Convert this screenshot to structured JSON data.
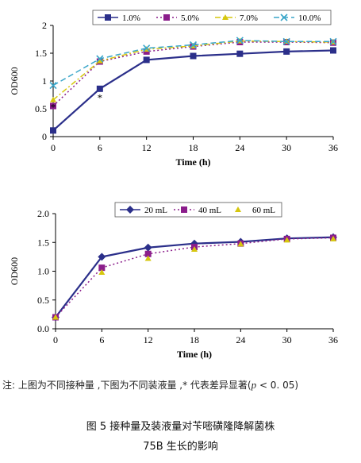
{
  "chart_data": [
    {
      "type": "line",
      "x": [
        0,
        6,
        12,
        18,
        24,
        30,
        36
      ],
      "xlabel": "Time (h)",
      "ylabel": "OD600",
      "ylim": [
        0,
        2
      ],
      "yticks": [
        "0",
        "0.5",
        "1",
        "1.5",
        "2"
      ],
      "xticks": [
        "0",
        "6",
        "12",
        "18",
        "24",
        "30",
        "36"
      ],
      "legend_position": "top",
      "series": [
        {
          "name": "1.0%",
          "color": "#2b2f8a",
          "marker": "square",
          "dash": "solid",
          "values": [
            0.11,
            0.86,
            1.38,
            1.45,
            1.49,
            1.53,
            1.55
          ]
        },
        {
          "name": "5.0%",
          "color": "#8b1d8b",
          "marker": "square",
          "dash": "dotted",
          "values": [
            0.55,
            1.35,
            1.53,
            1.62,
            1.7,
            1.7,
            1.69
          ]
        },
        {
          "name": "7.0%",
          "color": "#d6c70e",
          "marker": "triangle",
          "dash": "dashdot",
          "values": [
            0.66,
            1.36,
            1.57,
            1.63,
            1.72,
            1.71,
            1.7
          ]
        },
        {
          "name": "10.0%",
          "color": "#3aa6c9",
          "marker": "x",
          "dash": "dashed",
          "values": [
            0.92,
            1.4,
            1.59,
            1.65,
            1.73,
            1.71,
            1.71
          ]
        }
      ],
      "annotations": [
        {
          "text": "*",
          "x": 0,
          "y": 0.55
        },
        {
          "text": "*",
          "x": 6,
          "y": 0.72
        }
      ]
    },
    {
      "type": "line",
      "x": [
        0,
        6,
        12,
        18,
        24,
        30,
        36
      ],
      "xlabel": "Time (h)",
      "ylabel": "OD600",
      "ylim": [
        0,
        2.0
      ],
      "yticks": [
        "0.0",
        "0.5",
        "1.0",
        "1.5",
        "2.0"
      ],
      "xticks": [
        "0",
        "6",
        "12",
        "18",
        "24",
        "30",
        "36"
      ],
      "legend_position": "top",
      "series": [
        {
          "name": "20 mL",
          "color": "#2b2f8a",
          "marker": "diamond",
          "dash": "solid",
          "values": [
            0.2,
            1.25,
            1.41,
            1.48,
            1.51,
            1.57,
            1.59
          ]
        },
        {
          "name": "40 mL",
          "color": "#8b1d8b",
          "marker": "square",
          "dash": "dotted",
          "values": [
            0.2,
            1.06,
            1.3,
            1.42,
            1.48,
            1.56,
            1.58
          ]
        },
        {
          "name": "60 mL",
          "color": "#d6c70e",
          "marker": "triangle",
          "dash": "none",
          "values": [
            0.2,
            0.98,
            1.22,
            1.38,
            1.47,
            1.54,
            1.56
          ]
        }
      ]
    }
  ],
  "caption": {
    "note_prefix": "注: 上图为不同接种量 ,下图为不同装液量 ,*  代表差异显著(",
    "note_p": "p",
    "note_suffix": " < 0. 05)",
    "figure_title": "图 5    接种量及装液量对苄嘧磺隆降解菌株",
    "figure_subtitle": "75B 生长的影响"
  }
}
